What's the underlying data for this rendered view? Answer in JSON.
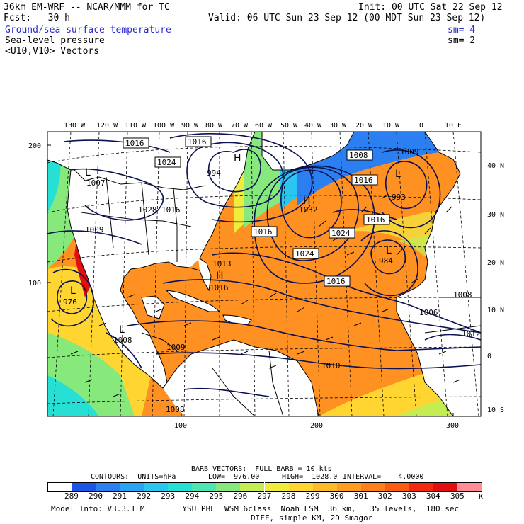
{
  "header": {
    "title_left": "36km EM-WRF -- NCAR/MMM for TC",
    "init": "Init: 00 UTC Sat 22 Sep 12",
    "fcst": "Fcst:   30 h",
    "valid": "Valid: 06 UTC Sun 23 Sep 12 (00 MDT Sun 23 Sep 12)",
    "field1": "Ground/sea-surface temperature",
    "field1_sm": "sm= 4",
    "field2": "Sea-level pressure",
    "field2_sm": "sm= 2",
    "field3": "<U10,V10> Vectors"
  },
  "axes": {
    "top_lon": [
      "130 W",
      "120 W",
      "110 W",
      "100 W",
      "90 W",
      "80 W",
      "70 W",
      "60 W",
      "50 W",
      "40 W",
      "30 W",
      "20 W",
      "10 W",
      "0",
      "10 E"
    ],
    "right_lat": [
      "40 N",
      "30 N",
      "20 N",
      "10 N",
      "0",
      "10 S"
    ],
    "left_ticks": [
      "200",
      "100"
    ],
    "bottom_ticks": [
      "100",
      "200",
      "300"
    ]
  },
  "map_labels": {
    "pressure_boxes": [
      "1016",
      "1016",
      "1024",
      "1008",
      "1016",
      "1016",
      "1024",
      "1016",
      "1024",
      "1016"
    ],
    "pressure_text": [
      "994",
      "1007",
      "1028",
      "1009",
      "1016",
      "1032",
      "993",
      "984",
      "1016",
      "976",
      "1008",
      "1009",
      "1010",
      "1006",
      "1012",
      "1013",
      "1008",
      "1009",
      "1008"
    ],
    "center_letters": [
      "L",
      "H",
      "L",
      "H",
      "L",
      "H",
      "L",
      "L"
    ]
  },
  "legend_text": {
    "barb": "BARB VECTORS:  FULL BARB = 10 kts",
    "contours": "CONTOURS:  UNITS=hPa",
    "low": "LOW=  976.00",
    "high": "HIGH=  1028.0",
    "interval": "INTERVAL=    4.0000",
    "unit": "K"
  },
  "colorbar": [
    {
      "label": "289",
      "color": "#1b56e6"
    },
    {
      "label": "290",
      "color": "#2c7ff0"
    },
    {
      "label": "291",
      "color": "#2aa4f2"
    },
    {
      "label": "292",
      "color": "#2bc6f0"
    },
    {
      "label": "293",
      "color": "#26e0d6"
    },
    {
      "label": "294",
      "color": "#4de5b3"
    },
    {
      "label": "295",
      "color": "#87e87c"
    },
    {
      "label": "296",
      "color": "#c4ec53"
    },
    {
      "label": "297",
      "color": "#f0ec3c"
    },
    {
      "label": "298",
      "color": "#ffd531"
    },
    {
      "label": "299",
      "color": "#ffba2a"
    },
    {
      "label": "300",
      "color": "#ff9d22"
    },
    {
      "label": "301",
      "color": "#ff801a"
    },
    {
      "label": "302",
      "color": "#fb5c14"
    },
    {
      "label": "303",
      "color": "#f22a10"
    },
    {
      "label": "304",
      "color": "#e10f10"
    },
    {
      "label": "305",
      "color": "#ff8c96"
    }
  ],
  "footer": {
    "line1": "Model Info: V3.3.1 M        YSU PBL  WSM 6class  Noah LSM  36 km,   35 levels,  180 sec",
    "line2": "DIFF, simple KM, 2D Smagor"
  },
  "colors": {
    "land": "#ffffff",
    "contour": "#0a1050",
    "border": "#000000"
  }
}
